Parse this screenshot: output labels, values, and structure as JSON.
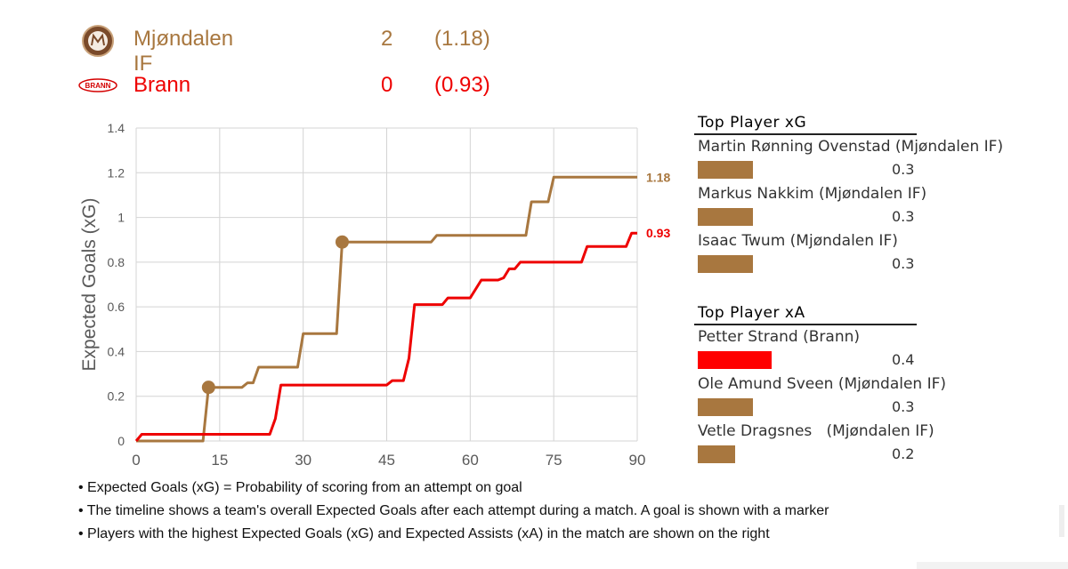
{
  "teams": [
    {
      "name": "Mjøndalen IF",
      "goals": "2",
      "xg": "(1.18)",
      "color": "#a8773f",
      "logo": "mjondalen-logo"
    },
    {
      "name": "Brann",
      "goals": "0",
      "xg": "(0.93)",
      "color": "#ee0000",
      "logo": "brann-logo",
      "logo_text": "BRANN"
    }
  ],
  "chart_data": {
    "type": "line",
    "title": "",
    "xlabel": "",
    "ylabel": "Expected Goals (xG)",
    "xlim": [
      0,
      90
    ],
    "ylim": [
      0,
      1.4
    ],
    "xticks": [
      0,
      15,
      30,
      45,
      60,
      75,
      90
    ],
    "yticks": [
      0,
      0.2,
      0.4,
      0.6,
      0.8,
      1,
      1.2,
      1.4
    ],
    "ytick_labels": [
      "0",
      "0.2",
      "0.4",
      "0.6",
      "0.8",
      "1",
      "1.2",
      "1.4"
    ],
    "grid": true,
    "series": [
      {
        "name": "Mjøndalen IF",
        "color": "#a8773f",
        "end_label": "1.18",
        "points": [
          [
            0,
            0
          ],
          [
            12,
            0
          ],
          [
            13,
            0.24
          ],
          [
            19,
            0.24
          ],
          [
            20,
            0.26
          ],
          [
            21,
            0.26
          ],
          [
            22,
            0.33
          ],
          [
            29,
            0.33
          ],
          [
            30,
            0.48
          ],
          [
            36,
            0.48
          ],
          [
            37,
            0.89
          ],
          [
            53,
            0.89
          ],
          [
            54,
            0.92
          ],
          [
            70,
            0.92
          ],
          [
            71,
            1.07
          ],
          [
            74,
            1.07
          ],
          [
            75,
            1.18
          ],
          [
            90,
            1.18
          ]
        ],
        "goal_markers": [
          [
            13,
            0.24
          ],
          [
            37,
            0.89
          ]
        ]
      },
      {
        "name": "Brann",
        "color": "#ee0000",
        "end_label": "0.93",
        "points": [
          [
            0,
            0
          ],
          [
            1,
            0.03
          ],
          [
            24,
            0.03
          ],
          [
            25,
            0.1
          ],
          [
            26,
            0.25
          ],
          [
            45,
            0.25
          ],
          [
            46,
            0.27
          ],
          [
            48,
            0.27
          ],
          [
            49,
            0.37
          ],
          [
            50,
            0.61
          ],
          [
            55,
            0.61
          ],
          [
            56,
            0.64
          ],
          [
            60,
            0.64
          ],
          [
            61,
            0.68
          ],
          [
            62,
            0.72
          ],
          [
            65,
            0.72
          ],
          [
            66,
            0.73
          ],
          [
            67,
            0.77
          ],
          [
            68,
            0.77
          ],
          [
            69,
            0.8
          ],
          [
            80,
            0.8
          ],
          [
            81,
            0.87
          ],
          [
            88,
            0.87
          ],
          [
            89,
            0.93
          ],
          [
            90,
            0.93
          ]
        ],
        "goal_markers": []
      }
    ]
  },
  "top_xg": {
    "title": "Top Player xG",
    "players": [
      {
        "name": "Martin Rønning Ovenstad (Mjøndalen IF)",
        "value": "0.3",
        "fraction": 0.3,
        "color": "#a8773f"
      },
      {
        "name": "Markus Nakkim (Mjøndalen IF)",
        "value": "0.3",
        "fraction": 0.3,
        "color": "#a8773f"
      },
      {
        "name": "Isaac Twum (Mjøndalen IF)",
        "value": "0.3",
        "fraction": 0.3,
        "color": "#a8773f"
      }
    ]
  },
  "top_xa": {
    "title": "Top Player xA",
    "players": [
      {
        "name": "Petter Strand (Brann)",
        "value": "0.4",
        "fraction": 0.4,
        "color": "#ff0000"
      },
      {
        "name": "Ole Amund Sveen (Mjøndalen IF)",
        "value": "0.3",
        "fraction": 0.3,
        "color": "#a8773f"
      },
      {
        "name": "Vetle Dragsnes   (Mjøndalen IF)",
        "value": "0.2",
        "fraction": 0.2,
        "color": "#a8773f"
      }
    ]
  },
  "notes": [
    "• Expected Goals (xG) = Probability of scoring from an attempt on goal",
    "• The timeline shows a team's overall Expected Goals after each attempt during a match. A goal is shown with a marker",
    "• Players with the highest Expected Goals (xG) and Expected Assists (xA) in the match are shown on the right"
  ]
}
